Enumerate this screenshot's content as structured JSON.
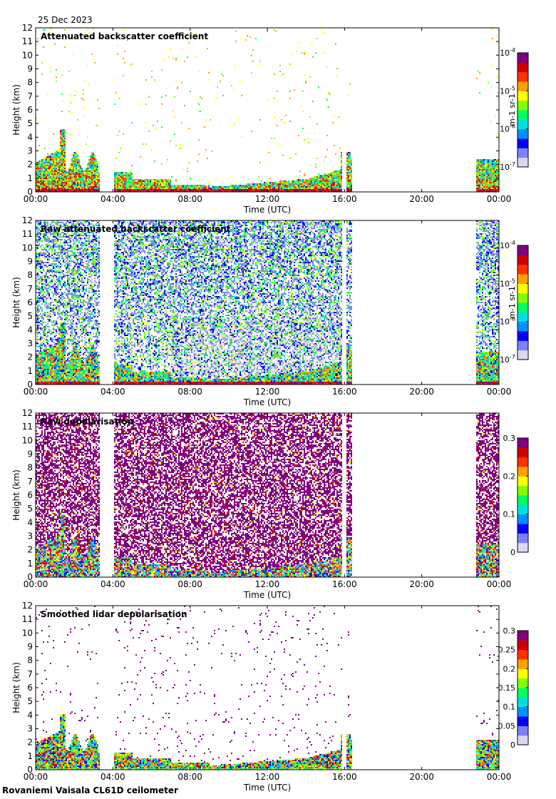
{
  "figure": {
    "date": "25 Dec 2023",
    "footer": "Rovaniemi Vaisala CL61D ceilometer"
  },
  "chart_data": [
    {
      "type": "heatmap",
      "title": "Attenuated backscatter coefficient",
      "xlabel": "Time (UTC)",
      "ylabel": "Height (km)",
      "xlim": [
        "00:00",
        "24:00"
      ],
      "ylim": [
        0,
        12
      ],
      "xticks": [
        "00:00",
        "04:00",
        "08:00",
        "12:00",
        "16:00",
        "20:00",
        "00:00"
      ],
      "yticks": [
        "0",
        "1",
        "2",
        "3",
        "4",
        "5",
        "6",
        "7",
        "8",
        "9",
        "10",
        "11",
        "12"
      ],
      "colorbar": {
        "scale": "log",
        "range": [
          1e-07,
          0.0001
        ],
        "ticks": [
          "10-7",
          "10-6",
          "10-5",
          "10-4"
        ],
        "unit": "m-1 sr-1"
      },
      "colormap": [
        "#ffffff",
        "#d8d8f0",
        "#0000ff",
        "#00c8ff",
        "#00ff80",
        "#80ff00",
        "#ffff00",
        "#ff8000",
        "#ff0000",
        "#800080"
      ],
      "data_gaps_utc": [
        [
          "03:15",
          "04:00"
        ],
        [
          "15:50",
          "16:05"
        ],
        [
          "16:20",
          "22:45"
        ]
      ],
      "features": {
        "boundary_layer_top_km": [
          2.5,
          4.8,
          2.5,
          1.0,
          0.6,
          0.5,
          0.4,
          0.4,
          0.5,
          1.4,
          1.6,
          2.5
        ],
        "boundary_layer_times": [
          "00:00",
          "01:20",
          "03:00",
          "04:00",
          "06:00",
          "08:00",
          "10:00",
          "12:00",
          "14:00",
          "15:30",
          "15:45",
          "23:00"
        ]
      }
    },
    {
      "type": "heatmap",
      "title": "Raw attenuated backscatter coefficient",
      "xlabel": "Time (UTC)",
      "ylabel": "Height (km)",
      "xlim": [
        "00:00",
        "24:00"
      ],
      "ylim": [
        0,
        12
      ],
      "xticks": [
        "00:00",
        "04:00",
        "08:00",
        "12:00",
        "16:00",
        "20:00",
        "00:00"
      ],
      "yticks": [
        "0",
        "1",
        "2",
        "3",
        "4",
        "5",
        "6",
        "7",
        "8",
        "9",
        "10",
        "11",
        "12"
      ],
      "colorbar": {
        "scale": "log",
        "range": [
          1e-07,
          0.0001
        ],
        "ticks": [
          "10-7",
          "10-6",
          "10-5",
          "10-4"
        ],
        "unit": "m-1 sr-1"
      },
      "data_gaps_utc": [
        [
          "03:15",
          "04:00"
        ],
        [
          "15:50",
          "16:05"
        ],
        [
          "16:20",
          "22:45"
        ]
      ]
    },
    {
      "type": "heatmap",
      "title": "Raw depolarisation",
      "xlabel": "Time (UTC)",
      "ylabel": "Height (km)",
      "xlim": [
        "00:00",
        "24:00"
      ],
      "ylim": [
        0,
        12
      ],
      "xticks": [
        "00:00",
        "04:00",
        "08:00",
        "12:00",
        "16:00",
        "20:00",
        "00:00"
      ],
      "yticks": [
        "0",
        "1",
        "2",
        "3",
        "4",
        "5",
        "6",
        "7",
        "8",
        "9",
        "10",
        "11",
        "12"
      ],
      "colorbar": {
        "scale": "linear",
        "range": [
          0,
          0.3
        ],
        "ticks": [
          "0",
          "0.1",
          "0.2",
          "0.3"
        ]
      },
      "data_gaps_utc": [
        [
          "03:15",
          "04:00"
        ],
        [
          "15:50",
          "16:05"
        ],
        [
          "16:20",
          "22:45"
        ]
      ]
    },
    {
      "type": "heatmap",
      "title": "Smoothed lidar depolarisation",
      "xlabel": "Time (UTC)",
      "ylabel": "Height (km)",
      "xlim": [
        "00:00",
        "24:00"
      ],
      "ylim": [
        0,
        12
      ],
      "xticks": [
        "00:00",
        "04:00",
        "08:00",
        "12:00",
        "16:00",
        "20:00",
        "00:00"
      ],
      "yticks": [
        "0",
        "1",
        "2",
        "3",
        "4",
        "5",
        "6",
        "7",
        "8",
        "9",
        "10",
        "11",
        "12"
      ],
      "colorbar": {
        "scale": "linear",
        "range": [
          0,
          0.3
        ],
        "ticks": [
          "0",
          "0.05",
          "0.1",
          "0.15",
          "0.2",
          "0.25",
          "0.3"
        ]
      },
      "data_gaps_utc": [
        [
          "03:15",
          "04:00"
        ],
        [
          "15:50",
          "16:05"
        ],
        [
          "16:20",
          "22:45"
        ]
      ]
    }
  ]
}
